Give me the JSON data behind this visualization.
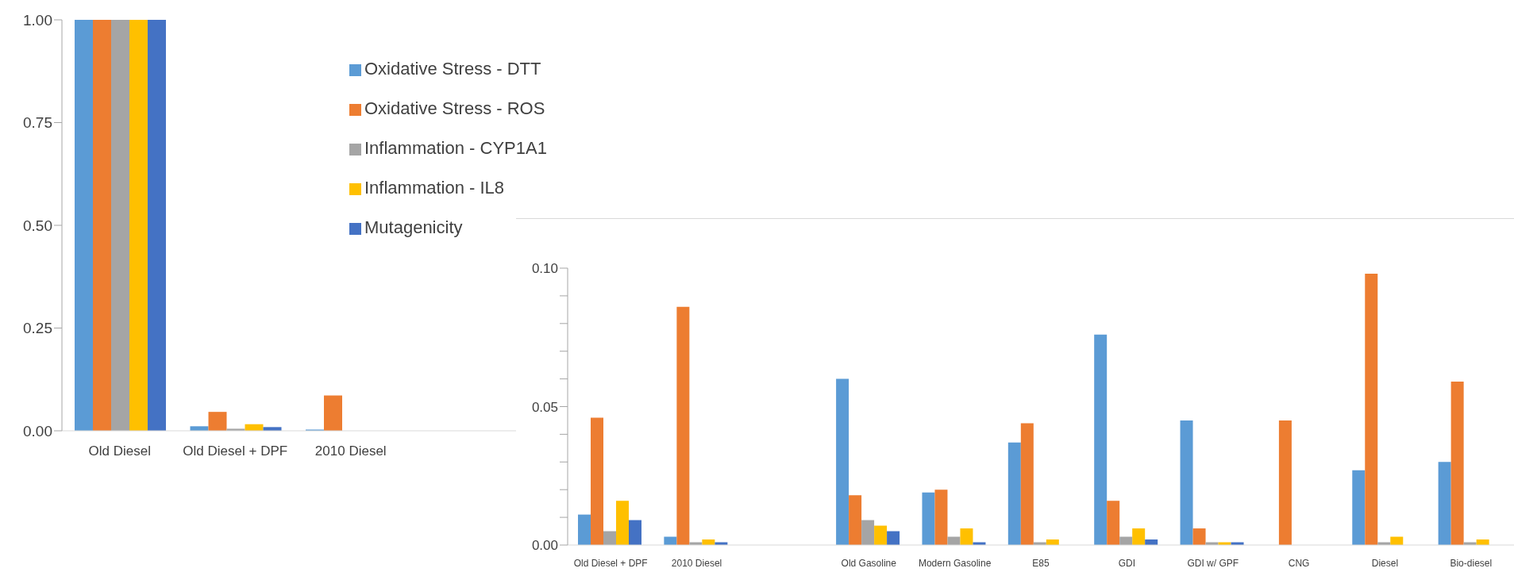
{
  "chart_data": [
    {
      "type": "bar",
      "categories": [
        "Old Diesel",
        "Old Diesel + DPF",
        "2010 Diesel",
        null
      ],
      "series": [
        {
          "name": "Oxidative Stress - DTT",
          "color": "#5b9bd5",
          "values": [
            1,
            0.011,
            0.003,
            null
          ]
        },
        {
          "name": "Oxidative Stress - ROS",
          "color": "#ed7d31",
          "values": [
            1,
            0.046,
            0.086,
            null
          ]
        },
        {
          "name": "Inflammation - CYP1A1",
          "color": "#a5a5a5",
          "values": [
            1,
            0.005,
            null,
            null
          ]
        },
        {
          "name": "Inflammation - IL8",
          "color": "#ffc000",
          "values": [
            1,
            0.016,
            null,
            null
          ]
        },
        {
          "name": "Mutagenicity",
          "color": "#4472c4",
          "values": [
            1,
            0.009,
            null,
            null
          ]
        }
      ],
      "ylim": [
        0,
        1
      ],
      "yticks": [
        {
          "value": 0,
          "label": "0.00"
        },
        {
          "value": 0.25,
          "label": "0.25"
        },
        {
          "value": 0.5,
          "label": "0.50"
        },
        {
          "value": 0.75,
          "label": "0.75"
        },
        {
          "value": 1,
          "label": "1.00"
        }
      ],
      "grid": false,
      "legend": "top right"
    },
    {
      "type": "bar",
      "categories": [
        "Old Diesel + DPF",
        "2010 Diesel",
        null,
        "Old Gasoline",
        "Modern Gasoline",
        "E85",
        "GDI",
        "GDI w/ GPF",
        "CNG",
        "Diesel",
        "Bio-diesel"
      ],
      "series": [
        {
          "color": "#5b9bd5",
          "values": [
            0.011,
            0.003,
            null,
            0.06,
            0.019,
            0.037,
            0.076,
            0.045,
            0,
            0.027,
            0.03
          ]
        },
        {
          "color": "#ed7d31",
          "values": [
            0.046,
            0.086,
            null,
            0.018,
            0.02,
            0.044,
            0.016,
            0.006,
            0.045,
            0.098,
            0.059
          ]
        },
        {
          "color": "#a5a5a5",
          "values": [
            0.005,
            0.001,
            null,
            0.009,
            0.003,
            0.001,
            0.003,
            0.001,
            0,
            0.001,
            0.001
          ]
        },
        {
          "color": "#ffc000",
          "values": [
            0.016,
            0.002,
            null,
            0.007,
            0.006,
            0.002,
            0.006,
            0.001,
            0,
            0.003,
            0.002
          ]
        },
        {
          "color": "#4472c4",
          "values": [
            0.009,
            0.001,
            null,
            0.005,
            0.001,
            0,
            0.002,
            0.001,
            0,
            0,
            0
          ]
        }
      ],
      "ylim": [
        0,
        0.1
      ],
      "yticks": [
        {
          "value": 0,
          "label": "0.00"
        },
        {
          "value": 0.01,
          "label": null
        },
        {
          "value": 0.02,
          "label": null
        },
        {
          "value": 0.03,
          "label": null
        },
        {
          "value": 0.04,
          "label": null
        },
        0.05,
        {
          "value": 0.06,
          "label": null
        },
        {
          "value": 0.07,
          "label": null
        },
        {
          "value": 0.08,
          "label": null
        },
        {
          "value": 0.09,
          "label": null
        },
        {
          "value": 0.1,
          "label": "0.10"
        }
      ],
      "grid": false
    }
  ]
}
